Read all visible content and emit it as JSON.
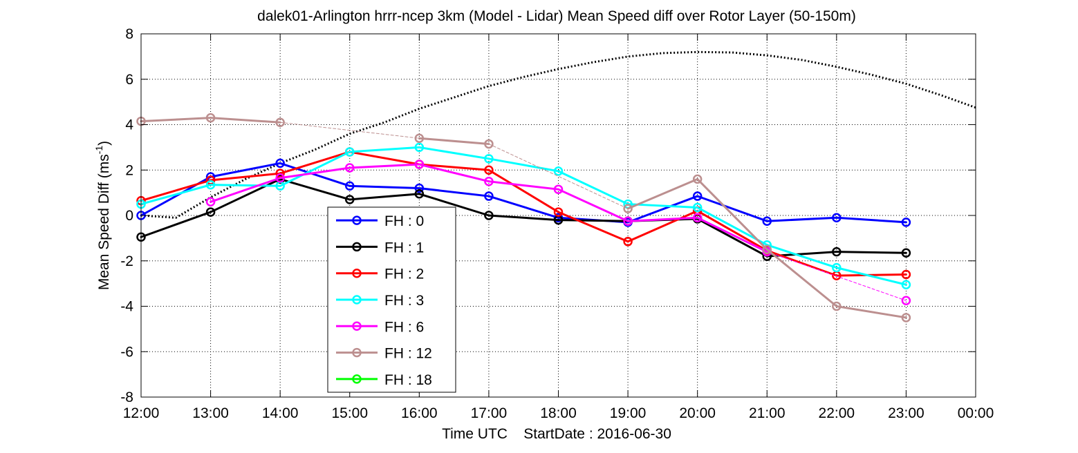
{
  "chart_data": {
    "type": "line",
    "title": "dalek01-Arlington hrrr-ncep 3km (Model - Lidar) Mean Speed diff over Rotor Layer (50-150m)",
    "xlabel": "Time UTC    StartDate : 2016-06-30",
    "ylabel_main": "Mean Speed Diff (ms",
    "ylabel_sup": "-1",
    "ylabel_close": ")",
    "ylim": [
      -8,
      8
    ],
    "yticks": [
      "-8",
      "-6",
      "-4",
      "-2",
      "0",
      "2",
      "4",
      "6",
      "8"
    ],
    "xticks": [
      "12:00",
      "13:00",
      "14:00",
      "15:00",
      "16:00",
      "17:00",
      "18:00",
      "19:00",
      "20:00",
      "21:00",
      "22:00",
      "23:00",
      "00:00"
    ],
    "grid": true,
    "legend_position": "lower-left-center",
    "series": [
      {
        "name": "FH : 0",
        "color": "#0000ff",
        "values": [
          0.0,
          1.7,
          2.3,
          1.3,
          1.2,
          0.85,
          -0.1,
          -0.3,
          0.85,
          -0.25,
          -0.1,
          -0.3
        ]
      },
      {
        "name": "FH : 1",
        "color": "#000000",
        "values": [
          -0.95,
          0.15,
          1.6,
          0.7,
          0.95,
          0.0,
          -0.2,
          -0.25,
          -0.15,
          -1.8,
          -1.6,
          -1.65
        ]
      },
      {
        "name": "FH : 2",
        "color": "#ff0000",
        "values": [
          0.65,
          1.55,
          1.85,
          2.8,
          2.25,
          2.0,
          0.15,
          -1.15,
          0.2,
          -1.55,
          -2.65,
          -2.6
        ]
      },
      {
        "name": "FH : 3",
        "color": "#00ffff",
        "values": [
          0.5,
          1.35,
          1.3,
          2.8,
          3.0,
          2.5,
          1.95,
          0.5,
          0.35,
          -1.3,
          -2.3,
          -3.05
        ]
      },
      {
        "name": "FH : 6",
        "color": "#ff00ff",
        "values": [
          null,
          0.6,
          1.65,
          2.1,
          2.25,
          1.5,
          1.15,
          -0.25,
          -0.1,
          -1.6,
          null,
          -3.75
        ]
      },
      {
        "name": "FH : 12",
        "color": "#bc8f8f",
        "values": [
          4.15,
          4.3,
          4.1,
          null,
          3.4,
          3.15,
          null,
          0.3,
          1.6,
          -1.5,
          -4.0,
          -4.5
        ]
      },
      {
        "name": "FH : 18",
        "color": "#00ff00",
        "values": []
      }
    ],
    "reference_curve": {
      "x": [
        0,
        0.5,
        1,
        1.5,
        2,
        2.5,
        3,
        3.5,
        4,
        4.5,
        5,
        5.5,
        6,
        6.5,
        7,
        7.5,
        8,
        8.5,
        9,
        9.5,
        10,
        10.5,
        11,
        11.5,
        12
      ],
      "y": [
        0.0,
        -0.1,
        0.8,
        1.6,
        2.3,
        2.9,
        3.6,
        4.1,
        4.7,
        5.2,
        5.7,
        6.1,
        6.45,
        6.75,
        7.0,
        7.15,
        7.2,
        7.18,
        7.05,
        6.85,
        6.55,
        6.2,
        5.8,
        5.3,
        4.75
      ]
    }
  }
}
